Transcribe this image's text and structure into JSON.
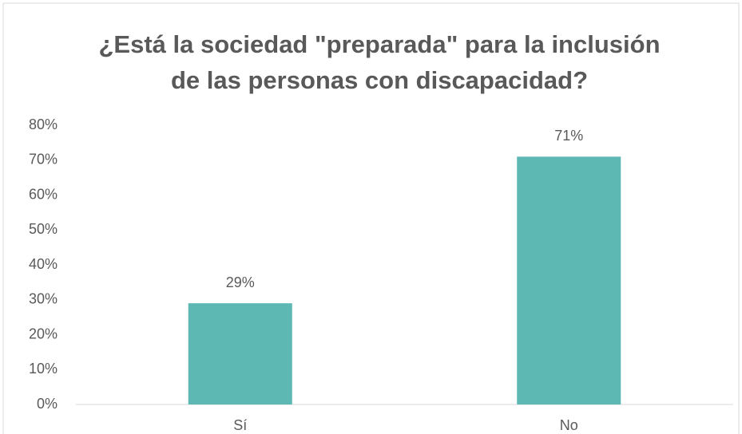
{
  "chart_data": {
    "type": "bar",
    "title": [
      "¿Está la sociedad \"preparada\" para la inclusión",
      "de las personas con discapacidad?"
    ],
    "categories": [
      "Sí",
      "No"
    ],
    "values": [
      29,
      71
    ],
    "value_labels": [
      "29%",
      "71%"
    ],
    "color": "#5db8b3",
    "ylim": [
      0,
      80
    ],
    "yticks": [
      {
        "value": 0,
        "label": "0%"
      },
      {
        "value": 10,
        "label": "10%"
      },
      {
        "value": 20,
        "label": "20%"
      },
      {
        "value": 30,
        "label": "30%"
      },
      {
        "value": 40,
        "label": "40%"
      },
      {
        "value": 50,
        "label": "50%"
      },
      {
        "value": 60,
        "label": "60%"
      },
      {
        "value": 70,
        "label": "70%"
      },
      {
        "value": 80,
        "label": "80%"
      }
    ],
    "grid": false
  }
}
